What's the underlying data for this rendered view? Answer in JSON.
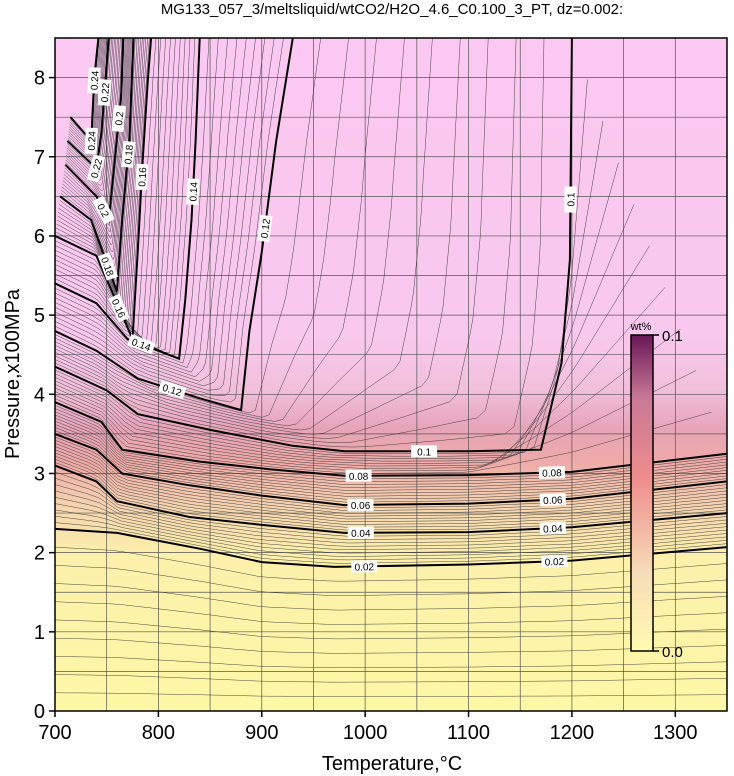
{
  "chart_data": {
    "type": "heatmap",
    "title": "MG133_057_3/meltsliquid/wtCO2/H2O_4.6_C0.100_3_PT, dz=0.002:",
    "xlabel": "Temperature,°C",
    "ylabel": "Pressure,x100MPa",
    "xlim": [
      700,
      1350
    ],
    "ylim": [
      0,
      8.5
    ],
    "x_ticks": [
      700,
      800,
      900,
      1000,
      1100,
      1200,
      1300
    ],
    "y_ticks": [
      0,
      1,
      2,
      3,
      4,
      5,
      6,
      7,
      8
    ],
    "grid": true,
    "colorbar": {
      "unit": "wt%",
      "min_label": "0.0",
      "max_label": "0.1",
      "range": [
        0.0,
        0.1
      ],
      "colors": [
        "#fffbb0",
        "#f5c8b0",
        "#ee8c8c",
        "#c87896",
        "#7a2060"
      ]
    },
    "contours": [
      {
        "level": 0.02,
        "label": "0.02",
        "points": [
          [
            700,
            2.3
          ],
          [
            760,
            2.25
          ],
          [
            840,
            2.05
          ],
          [
            900,
            1.88
          ],
          [
            970,
            1.82
          ],
          [
            1100,
            1.85
          ],
          [
            1200,
            1.9
          ],
          [
            1350,
            2.07
          ]
        ]
      },
      {
        "level": 0.04,
        "label": "0.04",
        "points": [
          [
            700,
            3.1
          ],
          [
            740,
            2.9
          ],
          [
            760,
            2.65
          ],
          [
            830,
            2.45
          ],
          [
            900,
            2.35
          ],
          [
            980,
            2.25
          ],
          [
            1100,
            2.26
          ],
          [
            1200,
            2.32
          ],
          [
            1350,
            2.5
          ]
        ]
      },
      {
        "level": 0.06,
        "label": "0.06",
        "points": [
          [
            700,
            3.5
          ],
          [
            740,
            3.3
          ],
          [
            765,
            3.0
          ],
          [
            830,
            2.85
          ],
          [
            900,
            2.72
          ],
          [
            980,
            2.6
          ],
          [
            1100,
            2.62
          ],
          [
            1200,
            2.68
          ],
          [
            1350,
            2.9
          ]
        ]
      },
      {
        "level": 0.08,
        "label": "0.08",
        "points": [
          [
            700,
            3.9
          ],
          [
            745,
            3.65
          ],
          [
            765,
            3.3
          ],
          [
            840,
            3.15
          ],
          [
            910,
            3.05
          ],
          [
            980,
            2.97
          ],
          [
            1100,
            2.98
          ],
          [
            1200,
            3.02
          ],
          [
            1350,
            3.25
          ]
        ]
      },
      {
        "level": 0.1,
        "label": "0.1",
        "points": [
          [
            700,
            4.35
          ],
          [
            750,
            4.05
          ],
          [
            780,
            3.75
          ],
          [
            850,
            3.55
          ],
          [
            930,
            3.35
          ],
          [
            980,
            3.28
          ],
          [
            1100,
            3.28
          ],
          [
            1170,
            3.3
          ],
          [
            1190,
            4.4
          ],
          [
            1198,
            5.7
          ],
          [
            1200,
            8.5
          ]
        ]
      },
      {
        "level": 0.12,
        "label": "0.12",
        "points": [
          [
            700,
            4.8
          ],
          [
            740,
            4.55
          ],
          [
            780,
            4.2
          ],
          [
            840,
            3.95
          ],
          [
            880,
            3.8
          ],
          [
            888,
            4.8
          ],
          [
            900,
            5.8
          ],
          [
            914,
            7.2
          ],
          [
            930,
            8.5
          ]
        ]
      },
      {
        "level": 0.14,
        "label": "0.14",
        "points": [
          [
            700,
            5.4
          ],
          [
            740,
            5.15
          ],
          [
            770,
            4.7
          ],
          [
            820,
            4.45
          ],
          [
            826,
            5.2
          ],
          [
            832,
            6.2
          ],
          [
            836,
            7.2
          ],
          [
            840,
            8.5
          ]
        ]
      },
      {
        "level": 0.16,
        "label": "0.16",
        "points": [
          [
            700,
            6.0
          ],
          [
            740,
            5.75
          ],
          [
            775,
            4.7
          ],
          [
            780,
            5.8
          ],
          [
            785,
            7.0
          ],
          [
            790,
            8.0
          ],
          [
            793,
            8.5
          ]
        ]
      },
      {
        "level": 0.18,
        "label": "0.18",
        "points": [
          [
            705,
            6.5
          ],
          [
            735,
            6.2
          ],
          [
            760,
            5.3
          ],
          [
            765,
            6.2
          ],
          [
            772,
            7.2
          ],
          [
            776,
            8.5
          ]
        ]
      },
      {
        "level": 0.2,
        "label": "0.2",
        "points": [
          [
            710,
            6.9
          ],
          [
            740,
            6.5
          ],
          [
            752,
            6.2
          ],
          [
            758,
            7.0
          ],
          [
            764,
            7.8
          ],
          [
            766,
            8.5
          ]
        ]
      },
      {
        "level": 0.22,
        "label": "0.22",
        "points": [
          [
            712,
            7.2
          ],
          [
            740,
            6.85
          ],
          [
            745,
            7.3
          ],
          [
            752,
            8.5
          ]
        ]
      },
      {
        "level": 0.24,
        "label": "0.24",
        "points": [
          [
            715,
            7.5
          ],
          [
            735,
            7.2
          ],
          [
            738,
            8.0
          ],
          [
            742,
            8.5
          ]
        ]
      }
    ]
  }
}
